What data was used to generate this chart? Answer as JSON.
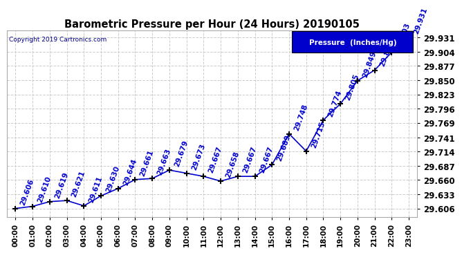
{
  "title": "Barometric Pressure per Hour (24 Hours) 20190105",
  "copyright": "Copyright 2019 Cartronics.com",
  "legend_label": "Pressure  (Inches/Hg)",
  "hours": [
    0,
    1,
    2,
    3,
    4,
    5,
    6,
    7,
    8,
    9,
    10,
    11,
    12,
    13,
    14,
    15,
    16,
    17,
    18,
    19,
    20,
    21,
    22,
    23
  ],
  "x_labels": [
    "00:00",
    "01:00",
    "02:00",
    "03:00",
    "04:00",
    "05:00",
    "06:00",
    "07:00",
    "08:00",
    "09:00",
    "10:00",
    "11:00",
    "12:00",
    "13:00",
    "14:00",
    "15:00",
    "16:00",
    "17:00",
    "18:00",
    "19:00",
    "20:00",
    "21:00",
    "22:00",
    "23:00"
  ],
  "pressure": [
    29.606,
    29.61,
    29.619,
    29.621,
    29.611,
    29.63,
    29.644,
    29.661,
    29.663,
    29.679,
    29.673,
    29.667,
    29.658,
    29.667,
    29.667,
    29.689,
    29.748,
    29.715,
    29.774,
    29.805,
    29.849,
    29.869,
    29.903,
    29.931
  ],
  "line_color": "#0000cc",
  "marker_color": "#000000",
  "background_color": "#ffffff",
  "grid_color": "#cccccc",
  "title_color": "#000000",
  "label_color": "#0000cc",
  "y_ticks": [
    29.606,
    29.633,
    29.66,
    29.687,
    29.714,
    29.741,
    29.769,
    29.796,
    29.823,
    29.85,
    29.877,
    29.904,
    29.931
  ],
  "ylim": [
    29.59,
    29.945
  ],
  "legend_bg": "#0000cc",
  "legend_text_color": "#ffffff",
  "annotation_rotation": 70,
  "annotation_fontsize": 7.5
}
